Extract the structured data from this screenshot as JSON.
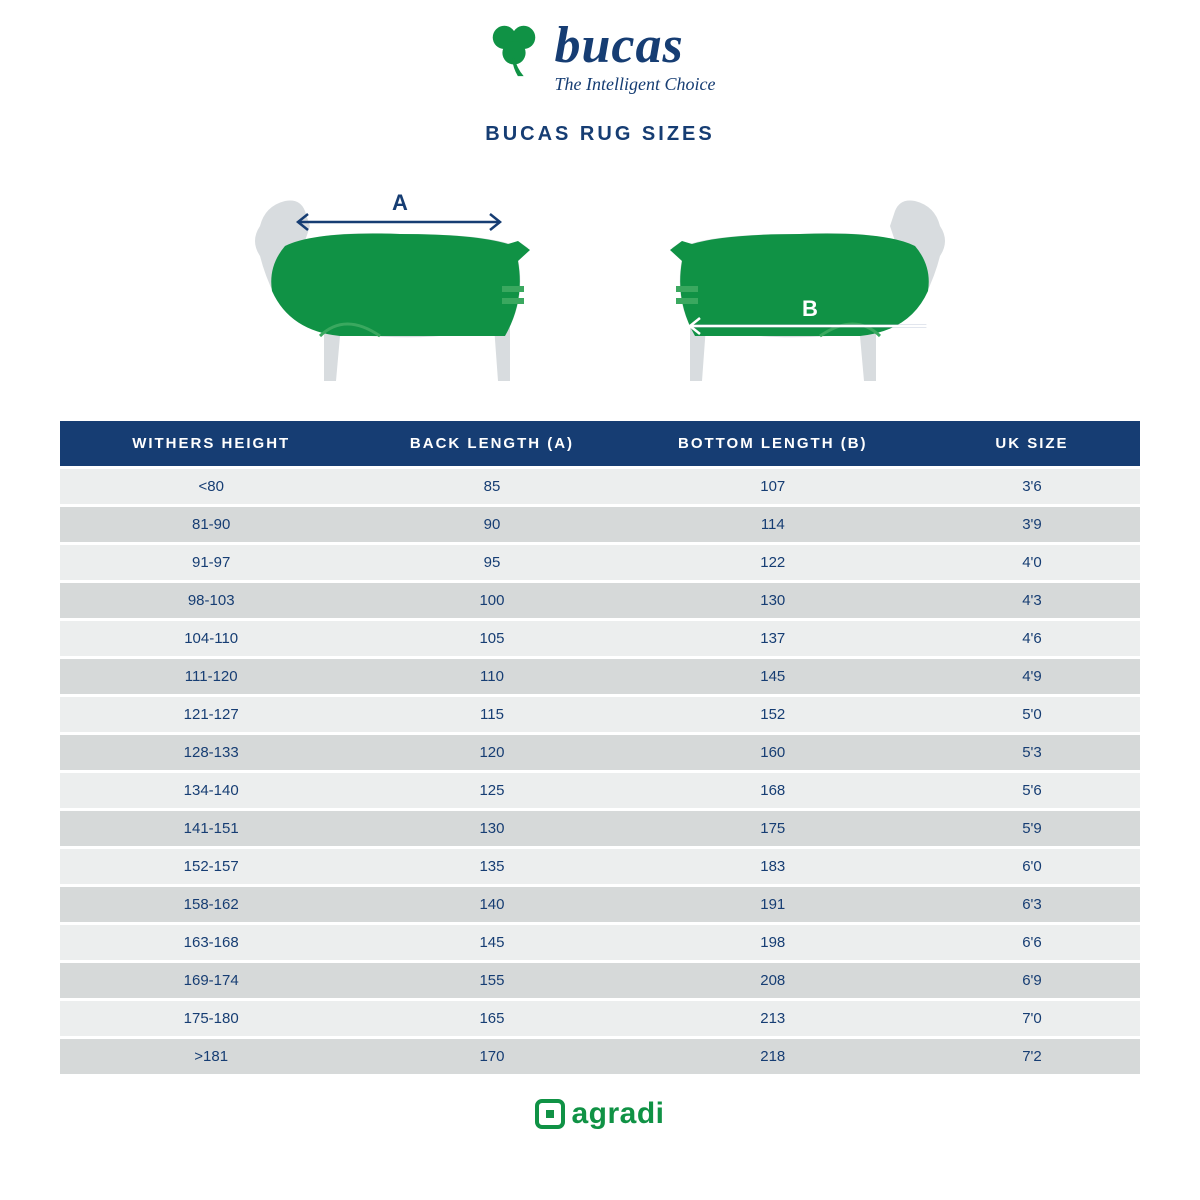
{
  "brand": {
    "name": "bucas",
    "tagline": "The Intelligent Choice",
    "name_color": "#163d73",
    "shamrock_color": "#109245"
  },
  "title": "BUCAS RUG SIZES",
  "title_color": "#163d73",
  "diagram": {
    "horse_silhouette_color": "#d8dcdf",
    "rug_color": "#109245",
    "rug_stripe_color": "#3aa85f",
    "label_color": "#163d73",
    "arrow_color": "#163d73",
    "label_a": "A",
    "label_b": "B"
  },
  "table": {
    "header_bg": "#163d73",
    "header_text_color": "#ffffff",
    "row_odd_bg": "#eceeee",
    "row_even_bg": "#d6d9d9",
    "cell_text_color": "#163d73",
    "columns": [
      "WITHERS HEIGHT",
      "BACK LENGTH (A)",
      "BOTTOM LENGTH (B)",
      "UK SIZE"
    ],
    "col_widths_pct": [
      28,
      24,
      28,
      20
    ],
    "rows": [
      [
        "<80",
        "85",
        "107",
        "3'6"
      ],
      [
        "81-90",
        "90",
        "114",
        "3'9"
      ],
      [
        "91-97",
        "95",
        "122",
        "4'0"
      ],
      [
        "98-103",
        "100",
        "130",
        "4'3"
      ],
      [
        "104-110",
        "105",
        "137",
        "4'6"
      ],
      [
        "111-120",
        "110",
        "145",
        "4'9"
      ],
      [
        "121-127",
        "115",
        "152",
        "5'0"
      ],
      [
        "128-133",
        "120",
        "160",
        "5'3"
      ],
      [
        "134-140",
        "125",
        "168",
        "5'6"
      ],
      [
        "141-151",
        "130",
        "175",
        "5'9"
      ],
      [
        "152-157",
        "135",
        "183",
        "6'0"
      ],
      [
        "158-162",
        "140",
        "191",
        "6'3"
      ],
      [
        "163-168",
        "145",
        "198",
        "6'6"
      ],
      [
        "169-174",
        "155",
        "208",
        "6'9"
      ],
      [
        "175-180",
        "165",
        "213",
        "7'0"
      ],
      [
        ">181",
        "170",
        "218",
        "7'2"
      ]
    ]
  },
  "footer": {
    "text": "agradi",
    "color": "#109245"
  }
}
